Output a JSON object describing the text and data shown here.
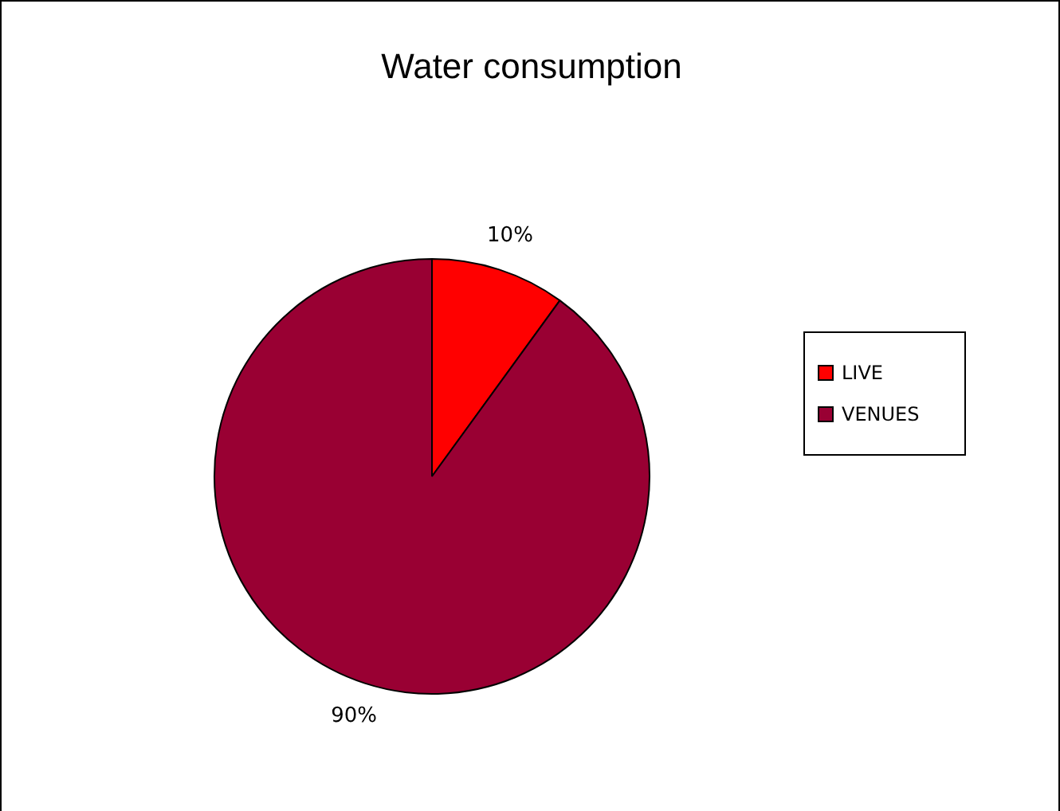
{
  "chart_data": {
    "type": "pie",
    "title": "Water consumption",
    "categories": [
      "LIVE",
      "VENUES"
    ],
    "values": [
      10,
      90
    ],
    "colors": [
      "#ff0000",
      "#990033"
    ],
    "value_labels": [
      "10%",
      "90%"
    ],
    "legend": "right"
  }
}
